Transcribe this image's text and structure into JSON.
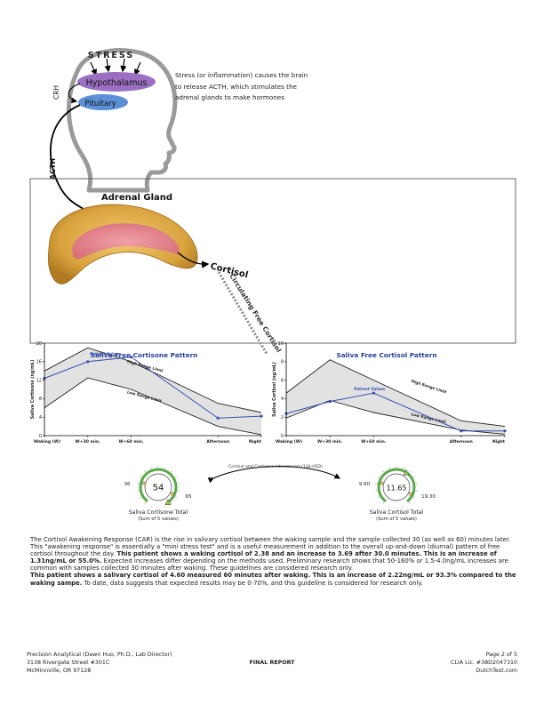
{
  "anatomy": {
    "stress_label": "STRESS",
    "hypothalamus_label": "Hypothalamus",
    "pituitary_label": "Pituitary",
    "crh_label": "CRH",
    "acth_label": "ACTH",
    "adrenal_label": "Adrenal Gland",
    "cortisol_label": "Cortisol",
    "circulating_label": "Circulating Free Cortisol",
    "stress_text": "Stress (or inflammation) causes the brain to release ACTH, which stimulates the adrenal glands to make hormones"
  },
  "colors": {
    "hypothalamus": "#9b6fc1",
    "pituitary": "#5b8fd6",
    "series_line": "#3a4fb0",
    "range_fill": "#e2e2e2",
    "gauge_green": "#5aa84a",
    "adrenal_outer": "#d9a33e",
    "adrenal_inner": "#e07f86"
  },
  "chart_data": [
    {
      "type": "line",
      "title": "Saliva Free Cortisone Pattern",
      "ylabel": "Saliva Cortisone",
      "ylabel_unit": "(ng/mL)",
      "categories": [
        "Waking (W)",
        "W+30 min.",
        "W+60 min.",
        "Afternoon",
        "Night"
      ],
      "x": [
        0,
        1,
        2,
        4,
        5
      ],
      "yticks": [
        0,
        4,
        8,
        12,
        16,
        20
      ],
      "ylim": [
        0,
        20
      ],
      "series": [
        {
          "name": "Patient Values",
          "values": [
            12.4,
            16.0,
            17.0,
            3.8,
            4.2
          ]
        },
        {
          "name": "High Range Limit",
          "values": [
            14.0,
            19.0,
            16.0,
            7.0,
            5.0
          ]
        },
        {
          "name": "Low Range Limit",
          "values": [
            6.0,
            12.5,
            10.0,
            2.0,
            0.2
          ]
        }
      ]
    },
    {
      "type": "line",
      "title": "Saliva Free Cortisol Pattern",
      "ylabel": "Saliva Cortisol",
      "ylabel_unit": "(ng/mL)",
      "categories": [
        "Waking (W)",
        "W+30 min.",
        "W+60 min.",
        "Afternoon",
        "Night"
      ],
      "x": [
        0,
        1,
        2,
        4,
        5
      ],
      "yticks": [
        0,
        2,
        4,
        6,
        8,
        10
      ],
      "ylim": [
        0,
        10
      ],
      "series": [
        {
          "name": "Patient Values",
          "values": [
            2.38,
            3.69,
            4.6,
            0.5,
            0.5
          ]
        },
        {
          "name": "High Range Limit",
          "values": [
            4.6,
            8.2,
            6.0,
            1.6,
            1.0
          ]
        },
        {
          "name": "Low Range Limit",
          "values": [
            1.9,
            3.8,
            2.5,
            0.6,
            0.15
          ]
        }
      ]
    }
  ],
  "gauges": [
    {
      "value": "54",
      "low": "36",
      "high": "65",
      "label": "Saliva Cortisone Total",
      "sublabel": "(Sum of 5 values)",
      "fraction": 0.69
    },
    {
      "value": "11.65",
      "low": "9.60",
      "high": "19.30",
      "label": "Saliva Cortisol Total",
      "sublabel": "(Sum of 5 values)",
      "fraction": 0.31
    }
  ],
  "interconversion_label": "Cortisol and Cortisone interconvert (11b-HSD)",
  "paragraph": {
    "p1_a": "The Cortisol Awakening Response (CAR) is the rise in salivary cortisol between the waking sample and the sample collected 30 (as well as 60) minutes later. This \"awakening response\" is essentially a \"mini stress test\" and is a useful measurement in addition to the overall up-and-down (diurnal) pattern of free cortisol throughout the day.",
    "p1_b": "This patient shows a waking cortisol of 2.38 and an increase to 3.69 after 30.0 minutes. This is an increase of 1.31ng/mL or 55.0%.",
    "p1_c": "Expected increases differ depending on the methods used. Preliminary research shows that 50-160% or 1.5-4.0ng/mL increases are common with samples collected 30 minutes after waking. These guidelines are considered research only.",
    "p2_a": "This patient shows a salivary cortisol of 4.60 measured 60 minutes after waking. This is an increase of 2.22ng/mL or 93.3% compared to the waking sampe.",
    "p2_b": "To date, data suggests that expected results may be 0-70%, and this guideline is considered for research only."
  },
  "footer": {
    "lab_name": "Precision Analytical (Dawn Huo, Ph.D., Lab Director)",
    "address1": "3138 Rivergate Street #301C",
    "address2": "McMinnville, OR 97128",
    "report_label": "FINAL REPORT",
    "page": "Page 2 of 5",
    "clia": "CLIA Lic. #38D2047310",
    "site": "DutchTest.com"
  }
}
